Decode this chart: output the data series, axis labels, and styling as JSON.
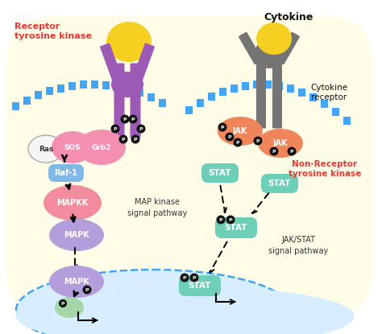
{
  "bg_outer": "#ffffff",
  "bg_cell": "#fffde7",
  "bg_nucleus": "#ddeeff",
  "membrane_color": "#42a5f5",
  "colors": {
    "yellow": "#f5d020",
    "purple": "#9c59b6",
    "gray": "#757575",
    "ras": "#f5f5f5",
    "sos": "#f48fb1",
    "grb2": "#f48fb1",
    "raf1": "#80b8e8",
    "mapkk": "#f48ca0",
    "mapk": "#b39ddb",
    "jak": "#f0845a",
    "stat": "#6ecfb8",
    "p_bg": "#111111",
    "p_fg": "#ffffff",
    "red": "#e53935",
    "dark": "#111111",
    "green": "#a5d6a7"
  },
  "lbl": {
    "p": "P",
    "ras": "Ras",
    "sos": "SOS",
    "grb2": "Grb2",
    "raf1": "Raf-1",
    "mapkk": "MAPKK",
    "mapk": "MAPK",
    "jak": "JAK",
    "stat": "STAT",
    "cytokine": "Cytokine",
    "cytokine_receptor": "Cytokine\nreceptor",
    "non_receptor": "Non-Receptor\ntyrosine kinase",
    "map_pathway": "MAP kinase\nsignal pathway",
    "jak_pathway": "JAK/STAT\nsignal pathway",
    "receptor_tk": "Receptor\ntyrosine kinase"
  }
}
